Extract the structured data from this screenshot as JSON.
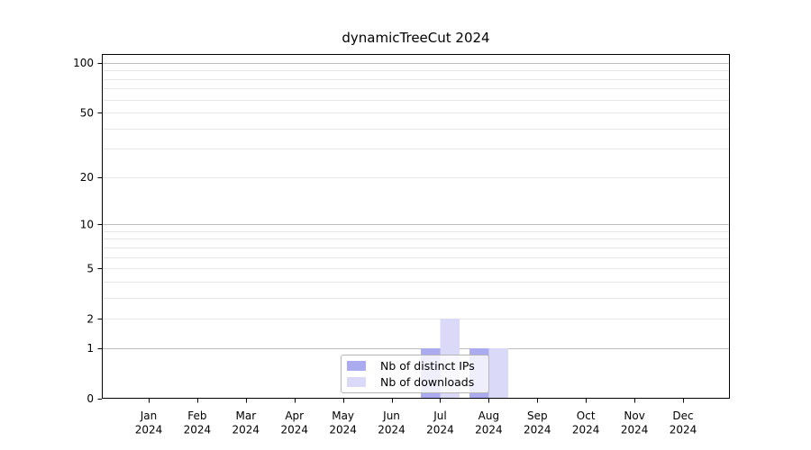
{
  "figure": {
    "background": "#ffffff",
    "text_color": "#000000",
    "axis_color": "#000000",
    "gridline_minor_color": "#e7e7e7",
    "gridline_major_color": "#bdbdbd"
  },
  "chart_data": {
    "type": "bar",
    "title": "dynamicTreeCut 2024",
    "xlabel": "",
    "ylabel": "",
    "categories": [
      "Jan 2024",
      "Feb 2024",
      "Mar 2024",
      "Apr 2024",
      "May 2024",
      "Jun 2024",
      "Jul 2024",
      "Aug 2024",
      "Sep 2024",
      "Oct 2024",
      "Nov 2024",
      "Dec 2024"
    ],
    "series": [
      {
        "name": "Nb of distinct IPs",
        "color": "#ababf0",
        "values": [
          0,
          0,
          0,
          0,
          0,
          0,
          1,
          1,
          0,
          0,
          0,
          0
        ]
      },
      {
        "name": "Nb of downloads",
        "color": "#dadaf8",
        "values": [
          0,
          0,
          0,
          0,
          0,
          0,
          2,
          1,
          0,
          0,
          0,
          0
        ]
      }
    ],
    "yscale": "log1p",
    "yticks": [
      0,
      1,
      2,
      5,
      10,
      20,
      50,
      100
    ],
    "yticklabels": [
      "0",
      "1",
      "2",
      "5",
      "10",
      "20",
      "50",
      "100"
    ],
    "ylim": [
      0,
      113
    ],
    "grid": "horizontal",
    "legend_position": "inside-bottom-center"
  }
}
